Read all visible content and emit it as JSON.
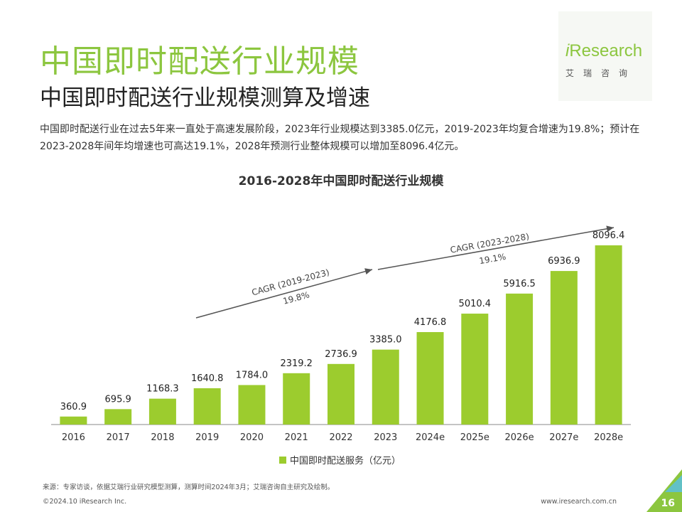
{
  "header": {
    "title": "中国即时配送行业规模",
    "subtitle": "中国即时配送行业规模测算及增速"
  },
  "logo": {
    "brand_i": "i",
    "brand_rest": "Research",
    "chinese": "艾瑞咨询"
  },
  "description": "中国即时配送行业在过去5年来一直处于高速发展阶段，2023年行业规模达到3385.0亿元，2019-2023年均复合增速为19.8%；预计在2023-2028年间年均增速也可高达19.1%，2028年预测行业整体规模可以增加至8096.4亿元。",
  "chart_data": {
    "type": "bar",
    "title": "2016-2028年中国即时配送行业规模",
    "categories": [
      "2016",
      "2017",
      "2018",
      "2019",
      "2020",
      "2021",
      "2022",
      "2023",
      "2024e",
      "2025e",
      "2026e",
      "2027e",
      "2028e"
    ],
    "series": [
      {
        "name": "中国即时配送服务（亿元）",
        "values": [
          360.9,
          695.9,
          1168.3,
          1640.8,
          1784.0,
          2319.2,
          2736.9,
          3385.0,
          4176.8,
          5010.4,
          5916.5,
          6936.9,
          8096.4
        ],
        "labels": [
          "360.9",
          "695.9",
          "1168.3",
          "1640.8",
          "1784.0",
          "2319.2",
          "2736.9",
          "3385.0",
          "4176.8",
          "5010.4",
          "5916.5",
          "6936.9",
          "8096.4"
        ]
      }
    ],
    "ylim": [
      0,
      9000
    ],
    "legend": "bottom-center",
    "grid": false,
    "annotations": [
      {
        "label": "CAGR (2019-2023)",
        "value": "19.8%"
      },
      {
        "label": "CAGR (2023-2028)",
        "value": "19.1%"
      }
    ]
  },
  "colors": {
    "accent": "#8cc63f",
    "bar": "#9ccc2e",
    "arrow": "#555555"
  },
  "footer": {
    "source": "来源：专家访谈，依据艾瑞行业研究模型测算，测算时间2024年3月；艾瑞咨询自主研究及绘制。",
    "copyright": "©2024.10 iResearch Inc.",
    "website": "www.iresearch.com.cn",
    "page": "16"
  }
}
